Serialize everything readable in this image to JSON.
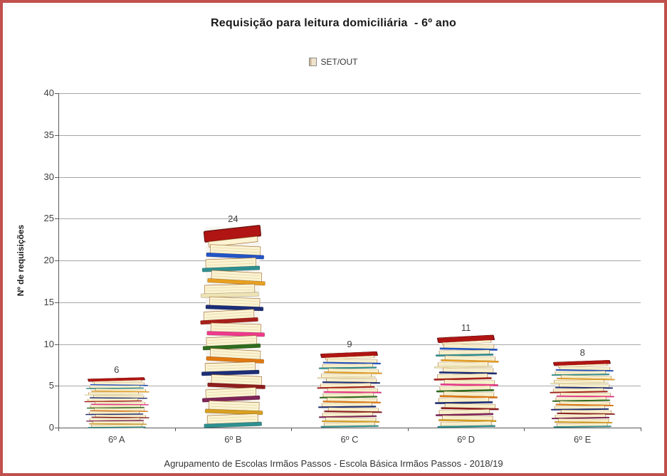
{
  "frame": {
    "border_color": "#C0504D",
    "background_color": "#FFFFFF"
  },
  "title": {
    "text": "Requisição para leitura domiciliária  - 6º ano"
  },
  "legend": {
    "label": "SET/OUT",
    "icon": "book-stack-swatch",
    "swatch_colors": [
      "#C9B393",
      "#EFE3CC"
    ]
  },
  "footer": {
    "text": "Agrupamento de Escolas Irmãos Passos - Escola Básica Irmãos Passos - 2018/19"
  },
  "chart_data": {
    "type": "bar",
    "title": "Requisição para leitura domiciliária - 6º ano",
    "categories": [
      "6º A",
      "6º B",
      "6º C",
      "6º D",
      "6º E"
    ],
    "series": [
      {
        "name": "SET/OUT",
        "values": [
          6,
          24,
          9,
          11,
          8
        ]
      }
    ],
    "data_labels": [
      "6",
      "24",
      "9",
      "11",
      "8"
    ],
    "xlabel": "",
    "ylabel": "Nº de requisições",
    "ylim": [
      0,
      40
    ],
    "yticks": [
      0,
      5,
      10,
      15,
      20,
      25,
      30,
      35,
      40
    ],
    "grid": true,
    "legend_position": "top-center",
    "bar_style": "stacked-books clipart stretched to bar height",
    "colors": {
      "gridline": "#A6A6A6",
      "axis": "#595959",
      "text": "#3F3F3F",
      "title_text": "#1A1A1A",
      "book_stack_background": "#F6F5F0",
      "book_pages": "#FBF3D2",
      "book_pages_outline": "#A06A32",
      "book_page_line": "#E4D8A8",
      "book_top_cover": "#B01513",
      "book_covers": [
        "#2255C8",
        "#2E9090",
        "#E8A020",
        "#EDE3B4",
        "#1B2E78",
        "#A8201A",
        "#EE3A8C",
        "#2F6D1F",
        "#E2790F",
        "#1B2E78",
        "#8F1D1D",
        "#7E2458",
        "#D8A020",
        "#2E9090"
      ]
    }
  }
}
